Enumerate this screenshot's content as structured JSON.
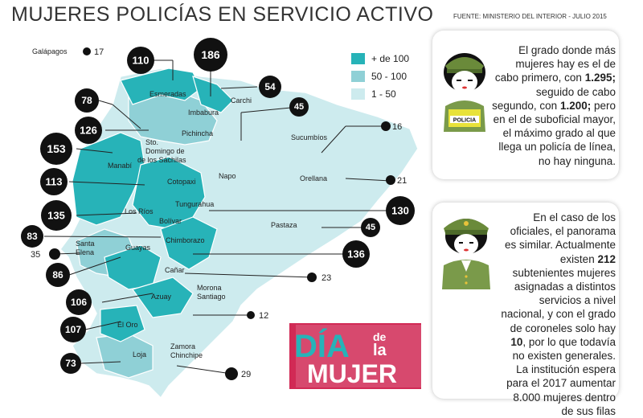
{
  "title": "MUJERES POLICÍAS EN SERVICIO ACTIVO",
  "source": "FUENTE: MINISTERIO DEL INTERIOR - JULIO 2015",
  "colors": {
    "high": "#27b3b8",
    "mid": "#8fd0d6",
    "low": "#cdebee",
    "dot": "#111111",
    "badge_red": "#d12a55",
    "badge_blue": "#27b3b8"
  },
  "legend": [
    {
      "label": "+ de 100",
      "color": "#27b3b8"
    },
    {
      "label": "50 - 100",
      "color": "#8fd0d6"
    },
    {
      "label": "1 - 50",
      "color": "#cdebee"
    }
  ],
  "provinces": {
    "galapagos": {
      "name": "Galápagos",
      "value": "17"
    },
    "esmeraldas": {
      "name": "Esmeradas",
      "value": "110"
    },
    "carchi": {
      "name": "Carchi",
      "value": "54"
    },
    "imbabura": {
      "name": "Imbabura",
      "value": "186"
    },
    "sucumbios": {
      "name": "Sucumbíos",
      "value": "16"
    },
    "pichincha": {
      "name": "Pichincha",
      "value": "45"
    },
    "sto_domingo_1": {
      "name": "Sto.",
      "value": "78"
    },
    "sto_domingo_2": {
      "name": "Domingo de",
      "value": ""
    },
    "sto_domingo_3": {
      "name": "de los Sáchilas",
      "value": "126"
    },
    "manabi": {
      "name": "Manabí",
      "value": "153"
    },
    "napo": {
      "name": "Napo",
      "value": "45"
    },
    "orellana": {
      "name": "Orellana",
      "value": "21"
    },
    "cotopaxi": {
      "name": "Cotopaxi",
      "value": "113"
    },
    "tungurahua": {
      "name": "Tungurahua",
      "value": "130"
    },
    "los_rios": {
      "name": "Los Ríos",
      "value": "135"
    },
    "bolivar": {
      "name": "Bolívar",
      "value": "83"
    },
    "pastaza": {
      "name": "Pastaza",
      "value": "45"
    },
    "santa_elena": {
      "name": "Santa\nElena",
      "value": "35"
    },
    "guayas": {
      "name": "Guayas",
      "value": "86"
    },
    "chimborazo": {
      "name": "Chimborazo",
      "value": "136"
    },
    "canar": {
      "name": "Cañar",
      "value": "23"
    },
    "morona": {
      "name": "Morona\nSantiago",
      "value": "12"
    },
    "azuay": {
      "name": "Azuay",
      "value": "106"
    },
    "el_oro": {
      "name": "El Oro",
      "value": "107"
    },
    "loja": {
      "name": "Loja",
      "value": "73"
    },
    "zamora": {
      "name": "Zamora\nChinchipe",
      "value": "29"
    }
  },
  "card1": {
    "text1": "El grado donde más mujeres hay es el de cabo primero, con",
    "num1": "1.295;",
    "text2": " seguido de cabo segundo, con",
    "num2": "1.200;",
    "text3": " pero en el de suboficial mayor, el máximo grado al que llega un policía de línea, no hay ninguna.",
    "vest_label": "POLICIA"
  },
  "card2": {
    "text1": "En el caso de los oficiales, el panorama es similar. Actualmente existen",
    "num1": "212",
    "text2": " subtenientes mujeres asignadas a distintos servicios a nivel nacional, y con el grado de coroneles solo hay",
    "num2": "10",
    "text3": ", por lo que todavía no existen generales. La institución espera para el 2017 aumentar 8.000 mujeres dentro de sus filas"
  },
  "badge": {
    "line1": "DÍA",
    "de": "de",
    "la": "la",
    "line2": "MUJER"
  }
}
